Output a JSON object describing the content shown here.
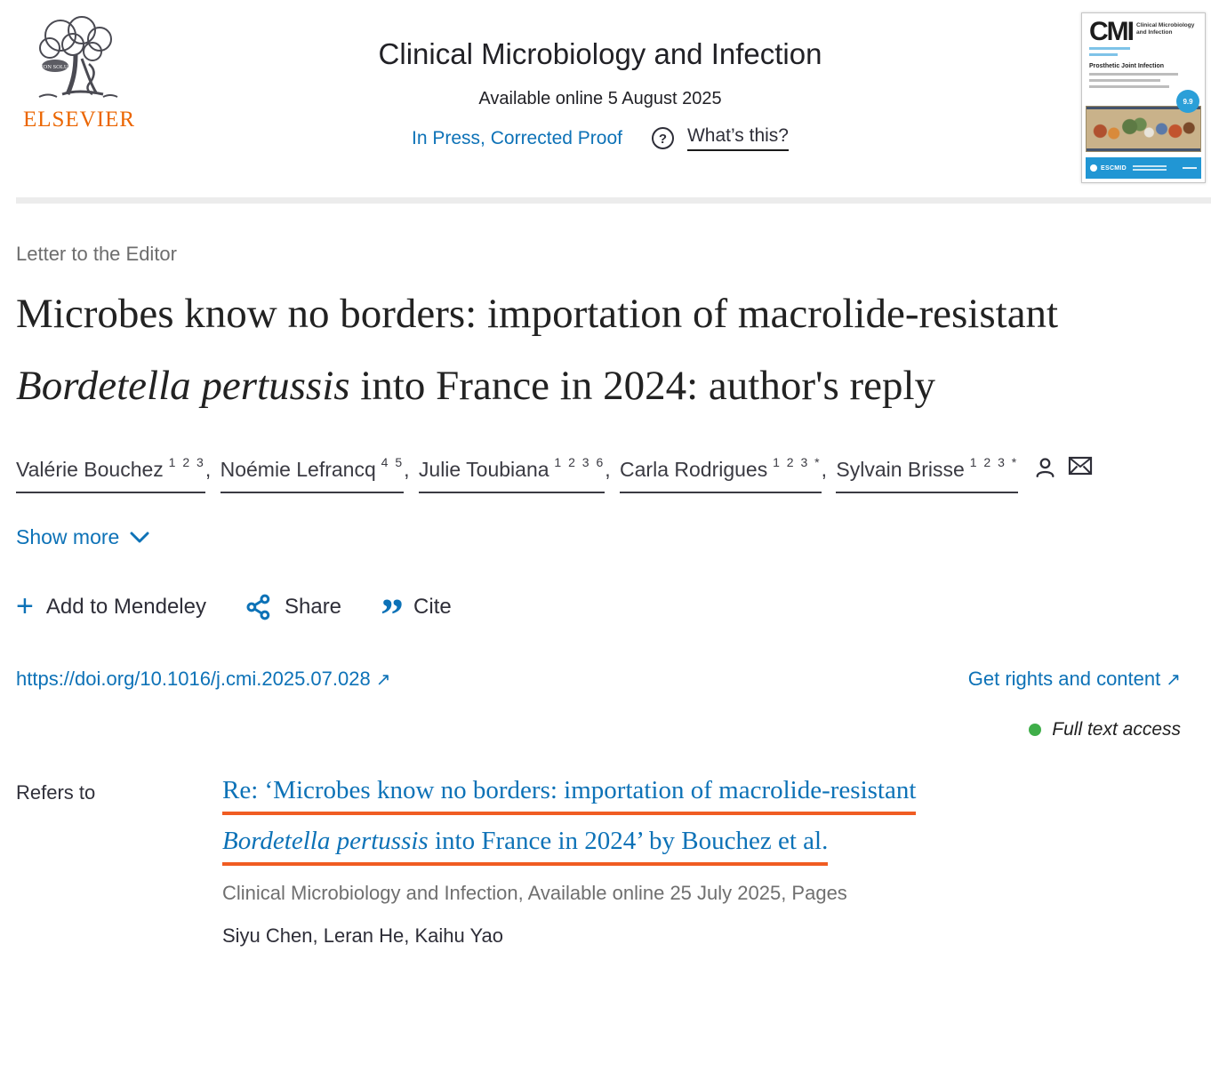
{
  "header": {
    "elsevier_wordmark": "ELSEVIER",
    "non_solus": "NON SOLUS",
    "journal_title": "Clinical Microbiology and Infection",
    "available_online": "Available online 5 August 2025",
    "in_press_label": "In Press, Corrected Proof",
    "whats_this_label": "What’s this?"
  },
  "cover": {
    "logo": "CMI",
    "journal_name": "Clinical Microbiology and Infection",
    "headline": "Prosthetic Joint Infection",
    "badge": "9.9",
    "society": "ESCMID"
  },
  "article": {
    "type_label": "Letter to the Editor",
    "title_part1": "Microbes know no borders: importation of macrolide-resistant ",
    "title_italic": "Bordetella pertussis",
    "title_part2": " into France in 2024: author's reply",
    "show_more_label": "Show more",
    "doi": "https://doi.org/10.1016/j.cmi.2025.07.028",
    "get_rights_label": "Get rights and content",
    "access_label": "Full text access",
    "external_arrow": "↗"
  },
  "authors": {
    "list": [
      {
        "name": "Valérie Bouchez",
        "sup": "1 2 3",
        "sep": ", "
      },
      {
        "name": "Noémie Lefrancq",
        "sup": "4 5",
        "sep": ", "
      },
      {
        "name": "Julie Toubiana",
        "sup": "1 2 3 6",
        "sep": ", "
      },
      {
        "name": "Carla Rodrigues",
        "sup": "1 2 3 *",
        "sep": ", "
      },
      {
        "name": "Sylvain Brisse",
        "sup": "1 2 3 *",
        "sep": "",
        "has_icons": true
      }
    ]
  },
  "actions": {
    "mendeley_label": "Add to Mendeley",
    "share_label": "Share",
    "cite_label": "Cite"
  },
  "refers_to": {
    "label": "Refers to",
    "link_line1": "Re: ‘Microbes know no borders: importation of macrolide-resistant",
    "link_line2_italic": "Bordetella pertussis",
    "link_line2_rest": " into France in 2024’ by Bouchez et al.",
    "source_line": "Clinical Microbiology and Infection, Available online 25 July 2025, Pages",
    "authors_line": "Siyu Chen, Leran He, Kaihu Yao"
  },
  "colors": {
    "link_blue": "#0d72b7",
    "elsevier_orange": "#eb6500",
    "refers_underline_orange": "#f05c22",
    "access_green": "#3fae49",
    "cover_bar_blue": "#2196d4"
  }
}
